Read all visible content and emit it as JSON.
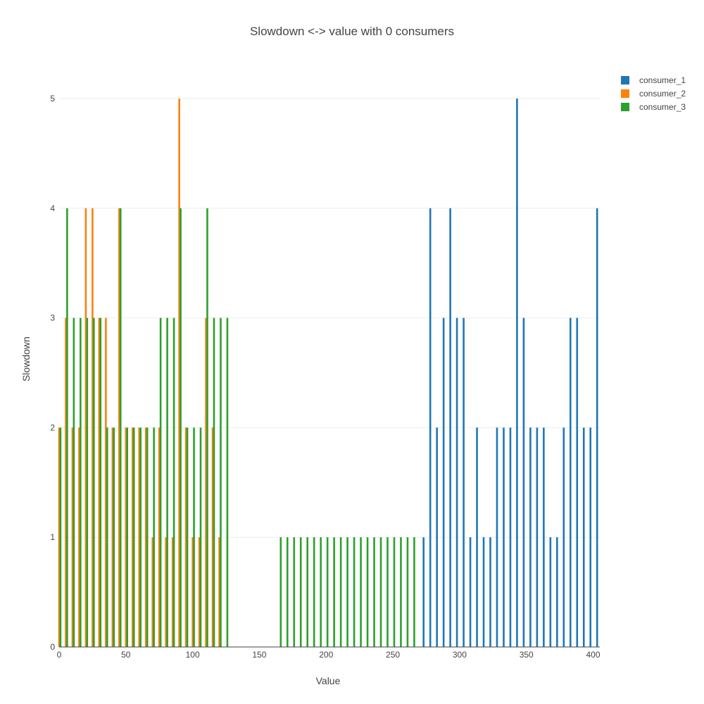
{
  "chart_data": {
    "type": "bar",
    "title": "Slowdown <-> value with 0 consumers",
    "xlabel": "Value",
    "ylabel": "Slowdown",
    "xlim": [
      0,
      405
    ],
    "ylim": [
      0,
      5
    ],
    "x_ticks": [
      0,
      50,
      100,
      150,
      200,
      250,
      300,
      350,
      400
    ],
    "y_ticks": [
      0,
      1,
      2,
      3,
      4,
      5
    ],
    "grid": true,
    "legend_position": "top-right",
    "series": [
      {
        "name": "consumer_1",
        "color": "#1f77b4",
        "x": [
          273,
          278,
          283,
          288,
          293,
          298,
          303,
          308,
          313,
          318,
          323,
          328,
          333,
          338,
          343,
          348,
          353,
          358,
          363,
          368,
          373,
          378,
          383,
          388,
          393,
          398,
          403
        ],
        "values": [
          1,
          4,
          2,
          3,
          4,
          3,
          3,
          1,
          2,
          1,
          1,
          2,
          2,
          2,
          5,
          3,
          2,
          2,
          2,
          1,
          1,
          2,
          3,
          3,
          2,
          2,
          4
        ]
      },
      {
        "name": "consumer_2",
        "color": "#ff7f0e",
        "x": [
          0,
          5,
          10,
          15,
          20,
          25,
          30,
          35,
          40,
          45,
          50,
          55,
          60,
          65,
          70,
          75,
          80,
          85,
          90,
          95,
          100,
          105,
          110,
          115,
          120
        ],
        "values": [
          2,
          3,
          2,
          2,
          4,
          4,
          3,
          3,
          2,
          4,
          2,
          2,
          2,
          2,
          1,
          2,
          1,
          1,
          5,
          2,
          1,
          1,
          3,
          2,
          1
        ]
      },
      {
        "name": "consumer_3",
        "color": "#2ca02c",
        "x": [
          1,
          6,
          11,
          16,
          21,
          26,
          31,
          36,
          41,
          46,
          51,
          56,
          61,
          66,
          71,
          76,
          81,
          86,
          91,
          96,
          101,
          106,
          111,
          116,
          121,
          126,
          166,
          171,
          176,
          181,
          186,
          191,
          196,
          201,
          206,
          211,
          216,
          221,
          226,
          231,
          236,
          241,
          246,
          251,
          256,
          261,
          266
        ],
        "values": [
          2,
          4,
          3,
          3,
          3,
          3,
          3,
          2,
          2,
          4,
          2,
          2,
          2,
          2,
          2,
          3,
          3,
          3,
          4,
          2,
          2,
          2,
          4,
          3,
          3,
          3,
          1,
          1,
          1,
          1,
          1,
          1,
          1,
          1,
          1,
          1,
          1,
          1,
          1,
          1,
          1,
          1,
          1,
          1,
          1,
          1,
          1
        ]
      }
    ]
  }
}
